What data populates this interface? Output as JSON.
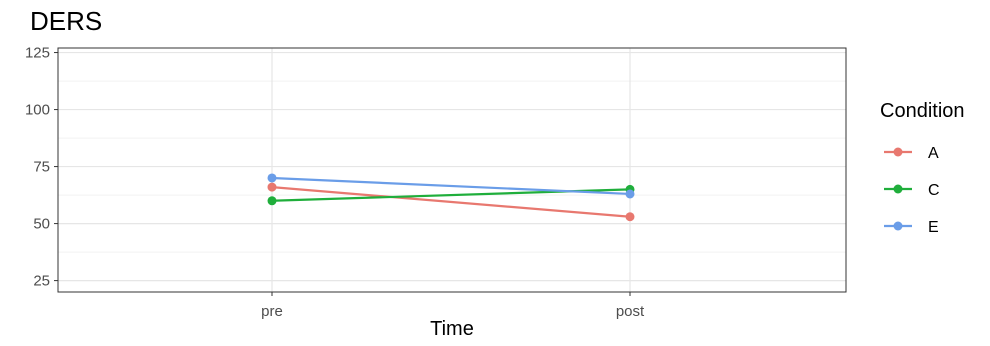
{
  "chart_data": {
    "type": "line",
    "title": "DERS",
    "xlabel": "Time",
    "ylabel": "",
    "categories": [
      "pre",
      "post"
    ],
    "ylim": [
      20,
      127
    ],
    "yticks": [
      25,
      50,
      75,
      100,
      125
    ],
    "grid": true,
    "legend": {
      "title": "Condition",
      "position": "right"
    },
    "series": [
      {
        "name": "A",
        "color": "#E8786F",
        "values": [
          66,
          53
        ]
      },
      {
        "name": "C",
        "color": "#1FAE3B",
        "values": [
          60,
          65
        ]
      },
      {
        "name": "E",
        "color": "#6A9DE8",
        "values": [
          70,
          63
        ]
      }
    ]
  }
}
